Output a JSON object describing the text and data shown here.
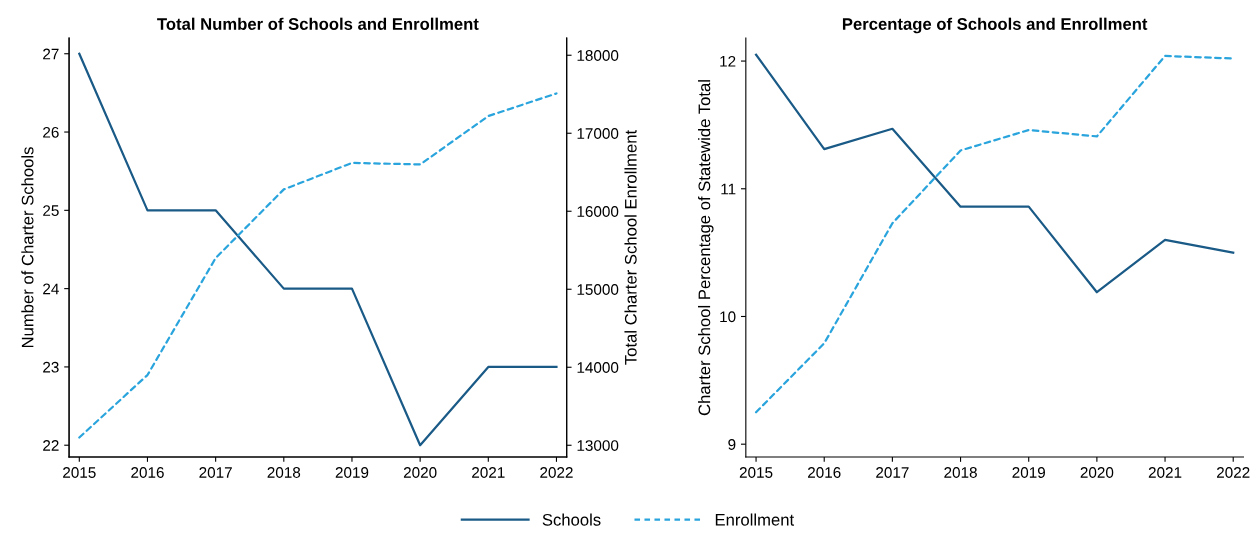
{
  "chart_data": [
    {
      "type": "line",
      "title": "Total Number of Schools and Enrollment",
      "ylabel": "Number of Charter Schools",
      "y2label": "Total Charter School Enrollment",
      "x": [
        2015,
        2016,
        2017,
        2018,
        2019,
        2020,
        2021,
        2022
      ],
      "xlim": [
        2014.85,
        2022.15
      ],
      "xticks": [
        2015,
        2016,
        2017,
        2018,
        2019,
        2020,
        2021,
        2022
      ],
      "ylim": [
        21.85,
        27.2
      ],
      "yticks": [
        22,
        23,
        24,
        25,
        26,
        27
      ],
      "y2lim": [
        12850,
        18220
      ],
      "y2ticks": [
        13000,
        14000,
        15000,
        16000,
        17000,
        18000
      ],
      "grid": false,
      "legend": "bottom",
      "series": [
        {
          "name": "Schools",
          "color": "#1a5a87",
          "line_style": "solid",
          "values": [
            27,
            25,
            25,
            24,
            24,
            22,
            23,
            23
          ]
        },
        {
          "name": "Enrollment",
          "color": "#2aa4dc",
          "line_style": "dashed",
          "axis": "y2",
          "values": [
            13100,
            13900,
            15400,
            16280,
            16620,
            16600,
            17220,
            17510
          ]
        }
      ]
    },
    {
      "type": "line",
      "title": "Percentage of Schools and Enrollment",
      "ylabel": "Charter School Percentage of Statewide Total",
      "x": [
        2015,
        2016,
        2017,
        2018,
        2019,
        2020,
        2021,
        2022
      ],
      "xlim": [
        2014.85,
        2022.15
      ],
      "xticks": [
        2015,
        2016,
        2017,
        2018,
        2019,
        2020,
        2021,
        2022
      ],
      "ylim": [
        8.9,
        12.18
      ],
      "yticks": [
        9,
        10,
        11,
        12
      ],
      "grid": false,
      "legend": "bottom",
      "series": [
        {
          "name": "Schools",
          "color": "#1a5a87",
          "line_style": "solid",
          "values": [
            12.05,
            11.31,
            11.47,
            10.86,
            10.86,
            10.19,
            10.6,
            10.5
          ]
        },
        {
          "name": "Enrollment",
          "color": "#2aa4dc",
          "line_style": "dashed",
          "values": [
            9.25,
            9.79,
            10.73,
            11.3,
            11.46,
            11.41,
            12.04,
            12.02
          ]
        }
      ]
    }
  ]
}
